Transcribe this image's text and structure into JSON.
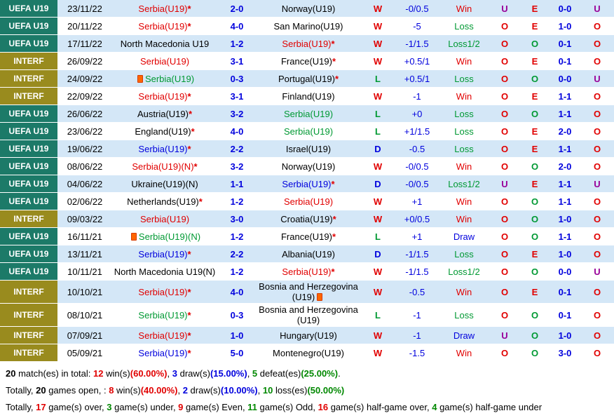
{
  "legend": {
    "star": "*"
  },
  "colors": {
    "uefa_label_bg": "#1c7a68",
    "interf_label_bg": "#998b1e",
    "row_alt_bg": "#d4e7f7",
    "win_red": "#e10000",
    "loss_green": "#009933",
    "draw_blue": "#0000dd",
    "under_purple": "#990099"
  },
  "table": {
    "rows": [
      {
        "competition": "UEFA U19",
        "comp_style": "uefa",
        "date": "23/11/22",
        "home": {
          "name": "Serbia(U19)",
          "color": "red",
          "star": true
        },
        "score": "2-0",
        "away": {
          "name": "Norway(U19)",
          "color": "black",
          "star": false
        },
        "result": "W",
        "result_color": "red",
        "handicap": "-0/0.5",
        "handicap_result": "Win",
        "handicap_result_color": "red",
        "ou_full": "U",
        "odd_even": "E",
        "half_score": "0-0",
        "ou_half": "U"
      },
      {
        "competition": "UEFA U19",
        "comp_style": "uefa",
        "date": "20/11/22",
        "home": {
          "name": "Serbia(U19)",
          "color": "red",
          "star": true
        },
        "score": "4-0",
        "away": {
          "name": "San Marino(U19)",
          "color": "black",
          "star": false
        },
        "result": "W",
        "result_color": "red",
        "handicap": "-5",
        "handicap_result": "Loss",
        "handicap_result_color": "green",
        "ou_full": "O",
        "odd_even": "E",
        "half_score": "1-0",
        "ou_half": "O"
      },
      {
        "competition": "UEFA U19",
        "comp_style": "uefa",
        "date": "17/11/22",
        "home": {
          "name": "North Macedonia U19",
          "color": "black",
          "star": false
        },
        "score": "1-2",
        "away": {
          "name": "Serbia(U19)",
          "color": "red",
          "star": true
        },
        "result": "W",
        "result_color": "red",
        "handicap": "-1/1.5",
        "handicap_result": "Loss1/2",
        "handicap_result_color": "green",
        "ou_full": "O",
        "odd_even": "O",
        "half_score": "0-1",
        "ou_half": "O"
      },
      {
        "competition": "INTERF",
        "comp_style": "interf",
        "date": "26/09/22",
        "home": {
          "name": "Serbia(U19)",
          "color": "red",
          "star": false
        },
        "score": "3-1",
        "away": {
          "name": "France(U19)",
          "color": "black",
          "star": true
        },
        "result": "W",
        "result_color": "red",
        "handicap": "+0.5/1",
        "handicap_result": "Win",
        "handicap_result_color": "red",
        "ou_full": "O",
        "odd_even": "E",
        "half_score": "0-1",
        "ou_half": "O"
      },
      {
        "competition": "INTERF",
        "comp_style": "interf",
        "date": "24/09/22",
        "home": {
          "name": "Serbia(U19)",
          "color": "green",
          "star": false,
          "card": "before"
        },
        "score": "0-3",
        "away": {
          "name": "Portugal(U19)",
          "color": "black",
          "star": true
        },
        "result": "L",
        "result_color": "green",
        "handicap": "+0.5/1",
        "handicap_result": "Loss",
        "handicap_result_color": "green",
        "ou_full": "O",
        "odd_even": "O",
        "half_score": "0-0",
        "ou_half": "U"
      },
      {
        "competition": "INTERF",
        "comp_style": "interf",
        "date": "22/09/22",
        "home": {
          "name": "Serbia(U19)",
          "color": "red",
          "star": true
        },
        "score": "3-1",
        "away": {
          "name": "Finland(U19)",
          "color": "black",
          "star": false
        },
        "result": "W",
        "result_color": "red",
        "handicap": "-1",
        "handicap_result": "Win",
        "handicap_result_color": "red",
        "ou_full": "O",
        "odd_even": "E",
        "half_score": "1-1",
        "ou_half": "O"
      },
      {
        "competition": "UEFA U19",
        "comp_style": "uefa",
        "date": "26/06/22",
        "home": {
          "name": "Austria(U19)",
          "color": "black",
          "star": true
        },
        "score": "3-2",
        "away": {
          "name": "Serbia(U19)",
          "color": "green",
          "star": false
        },
        "result": "L",
        "result_color": "green",
        "handicap": "+0",
        "handicap_result": "Loss",
        "handicap_result_color": "green",
        "ou_full": "O",
        "odd_even": "O",
        "half_score": "1-1",
        "ou_half": "O"
      },
      {
        "competition": "UEFA U19",
        "comp_style": "uefa",
        "date": "23/06/22",
        "home": {
          "name": "England(U19)",
          "color": "black",
          "star": true
        },
        "score": "4-0",
        "away": {
          "name": "Serbia(U19)",
          "color": "green",
          "star": false
        },
        "result": "L",
        "result_color": "green",
        "handicap": "+1/1.5",
        "handicap_result": "Loss",
        "handicap_result_color": "green",
        "ou_full": "O",
        "odd_even": "E",
        "half_score": "2-0",
        "ou_half": "O"
      },
      {
        "competition": "UEFA U19",
        "comp_style": "uefa",
        "date": "19/06/22",
        "home": {
          "name": "Serbia(U19)",
          "color": "blue",
          "star": true
        },
        "score": "2-2",
        "away": {
          "name": "Israel(U19)",
          "color": "black",
          "star": false
        },
        "result": "D",
        "result_color": "blue",
        "handicap": "-0.5",
        "handicap_result": "Loss",
        "handicap_result_color": "green",
        "ou_full": "O",
        "odd_even": "E",
        "half_score": "1-1",
        "ou_half": "O"
      },
      {
        "competition": "UEFA U19",
        "comp_style": "uefa",
        "date": "08/06/22",
        "home": {
          "name": "Serbia(U19)(N)",
          "color": "red",
          "star": true
        },
        "score": "3-2",
        "away": {
          "name": "Norway(U19)",
          "color": "black",
          "star": false
        },
        "result": "W",
        "result_color": "red",
        "handicap": "-0/0.5",
        "handicap_result": "Win",
        "handicap_result_color": "red",
        "ou_full": "O",
        "odd_even": "O",
        "half_score": "2-0",
        "ou_half": "O"
      },
      {
        "competition": "UEFA U19",
        "comp_style": "uefa",
        "date": "04/06/22",
        "home": {
          "name": "Ukraine(U19)(N)",
          "color": "black",
          "star": false
        },
        "score": "1-1",
        "away": {
          "name": "Serbia(U19)",
          "color": "blue",
          "star": true
        },
        "result": "D",
        "result_color": "blue",
        "handicap": "-0/0.5",
        "handicap_result": "Loss1/2",
        "handicap_result_color": "green",
        "ou_full": "U",
        "odd_even": "E",
        "half_score": "1-1",
        "ou_half": "U"
      },
      {
        "competition": "UEFA U19",
        "comp_style": "uefa",
        "date": "02/06/22",
        "home": {
          "name": "Netherlands(U19)",
          "color": "black",
          "star": true
        },
        "score": "1-2",
        "away": {
          "name": "Serbia(U19)",
          "color": "red",
          "star": false
        },
        "result": "W",
        "result_color": "red",
        "handicap": "+1",
        "handicap_result": "Win",
        "handicap_result_color": "red",
        "ou_full": "O",
        "odd_even": "O",
        "half_score": "1-1",
        "ou_half": "O"
      },
      {
        "competition": "INTERF",
        "comp_style": "interf",
        "date": "09/03/22",
        "home": {
          "name": "Serbia(U19)",
          "color": "red",
          "star": false
        },
        "score": "3-0",
        "away": {
          "name": "Croatia(U19)",
          "color": "black",
          "star": true
        },
        "result": "W",
        "result_color": "red",
        "handicap": "+0/0.5",
        "handicap_result": "Win",
        "handicap_result_color": "red",
        "ou_full": "O",
        "odd_even": "O",
        "half_score": "1-0",
        "ou_half": "O"
      },
      {
        "competition": "UEFA U19",
        "comp_style": "uefa",
        "date": "16/11/21",
        "home": {
          "name": "Serbia(U19)(N)",
          "color": "green",
          "star": false,
          "card": "before"
        },
        "score": "1-2",
        "away": {
          "name": "France(U19)",
          "color": "black",
          "star": true
        },
        "result": "L",
        "result_color": "green",
        "handicap": "+1",
        "handicap_result": "Draw",
        "handicap_result_color": "blue",
        "ou_full": "O",
        "odd_even": "O",
        "half_score": "1-1",
        "ou_half": "O"
      },
      {
        "competition": "UEFA U19",
        "comp_style": "uefa",
        "date": "13/11/21",
        "home": {
          "name": "Serbia(U19)",
          "color": "blue",
          "star": true
        },
        "score": "2-2",
        "away": {
          "name": "Albania(U19)",
          "color": "black",
          "star": false
        },
        "result": "D",
        "result_color": "blue",
        "handicap": "-1/1.5",
        "handicap_result": "Loss",
        "handicap_result_color": "green",
        "ou_full": "O",
        "odd_even": "E",
        "half_score": "1-0",
        "ou_half": "O"
      },
      {
        "competition": "UEFA U19",
        "comp_style": "uefa",
        "date": "10/11/21",
        "home": {
          "name": "North Macedonia U19(N)",
          "color": "black",
          "star": false
        },
        "score": "1-2",
        "away": {
          "name": "Serbia(U19)",
          "color": "red",
          "star": true
        },
        "result": "W",
        "result_color": "red",
        "handicap": "-1/1.5",
        "handicap_result": "Loss1/2",
        "handicap_result_color": "green",
        "ou_full": "O",
        "odd_even": "O",
        "half_score": "0-0",
        "ou_half": "U"
      },
      {
        "competition": "INTERF",
        "comp_style": "interf",
        "date": "10/10/21",
        "home": {
          "name": "Serbia(U19)",
          "color": "red",
          "star": true
        },
        "score": "4-0",
        "away": {
          "name": "Bosnia and Herzegovina (U19)",
          "color": "black",
          "star": false,
          "card": "after"
        },
        "result": "W",
        "result_color": "red",
        "handicap": "-0.5",
        "handicap_result": "Win",
        "handicap_result_color": "red",
        "ou_full": "O",
        "odd_even": "E",
        "half_score": "0-1",
        "ou_half": "O"
      },
      {
        "competition": "INTERF",
        "comp_style": "interf",
        "date": "08/10/21",
        "home": {
          "name": "Serbia(U19)",
          "color": "green",
          "star": true
        },
        "score": "0-3",
        "away": {
          "name": "Bosnia and Herzegovina (U19)",
          "color": "black",
          "star": false
        },
        "result": "L",
        "result_color": "green",
        "handicap": "-1",
        "handicap_result": "Loss",
        "handicap_result_color": "green",
        "ou_full": "O",
        "odd_even": "O",
        "half_score": "0-1",
        "ou_half": "O"
      },
      {
        "competition": "INTERF",
        "comp_style": "interf",
        "date": "07/09/21",
        "home": {
          "name": "Serbia(U19)",
          "color": "red",
          "star": true
        },
        "score": "1-0",
        "away": {
          "name": "Hungary(U19)",
          "color": "black",
          "star": false
        },
        "result": "W",
        "result_color": "red",
        "handicap": "-1",
        "handicap_result": "Draw",
        "handicap_result_color": "blue",
        "ou_full": "U",
        "odd_even": "O",
        "half_score": "1-0",
        "ou_half": "O"
      },
      {
        "competition": "INTERF",
        "comp_style": "interf",
        "date": "05/09/21",
        "home": {
          "name": "Serbia(U19)",
          "color": "blue",
          "star": true
        },
        "score": "5-0",
        "away": {
          "name": "Montenegro(U19)",
          "color": "black",
          "star": false
        },
        "result": "W",
        "result_color": "red",
        "handicap": "-1.5",
        "handicap_result": "Win",
        "handicap_result_color": "red",
        "ou_full": "O",
        "odd_even": "O",
        "half_score": "3-0",
        "ou_half": "O"
      }
    ]
  },
  "summary": {
    "line1": [
      {
        "t": "20",
        "s": "b"
      },
      {
        "t": " match(es) in total: "
      },
      {
        "t": "12",
        "s": "rb"
      },
      {
        "t": " win(s)"
      },
      {
        "t": "(60.00%)",
        "s": "rb"
      },
      {
        "t": ", "
      },
      {
        "t": "3",
        "s": "bb"
      },
      {
        "t": " draw(s)"
      },
      {
        "t": "(15.00%)",
        "s": "bb"
      },
      {
        "t": ", "
      },
      {
        "t": "5",
        "s": "gb"
      },
      {
        "t": " defeat(es)"
      },
      {
        "t": "(25.00%)",
        "s": "gb"
      },
      {
        "t": "."
      }
    ],
    "line2": [
      {
        "t": "Totally, "
      },
      {
        "t": "20",
        "s": "b"
      },
      {
        "t": " games open, : "
      },
      {
        "t": "8",
        "s": "rb"
      },
      {
        "t": " win(s)"
      },
      {
        "t": "(40.00%)",
        "s": "rb"
      },
      {
        "t": ", "
      },
      {
        "t": "2",
        "s": "bb"
      },
      {
        "t": " draw(s)"
      },
      {
        "t": "(10.00%)",
        "s": "bb"
      },
      {
        "t": ", "
      },
      {
        "t": "10",
        "s": "gb"
      },
      {
        "t": " loss(es)"
      },
      {
        "t": "(50.00%)",
        "s": "gb"
      }
    ],
    "line3": [
      {
        "t": "Totally, "
      },
      {
        "t": "17",
        "s": "rb"
      },
      {
        "t": " game(s) over, "
      },
      {
        "t": "3",
        "s": "gb"
      },
      {
        "t": " game(s) under, "
      },
      {
        "t": "9",
        "s": "rb"
      },
      {
        "t": " game(s) Even, "
      },
      {
        "t": "11",
        "s": "gb"
      },
      {
        "t": " game(s) Odd, "
      },
      {
        "t": "16",
        "s": "rb"
      },
      {
        "t": " game(s) half-game over, "
      },
      {
        "t": "4",
        "s": "gb"
      },
      {
        "t": " game(s) half-game under"
      }
    ]
  }
}
